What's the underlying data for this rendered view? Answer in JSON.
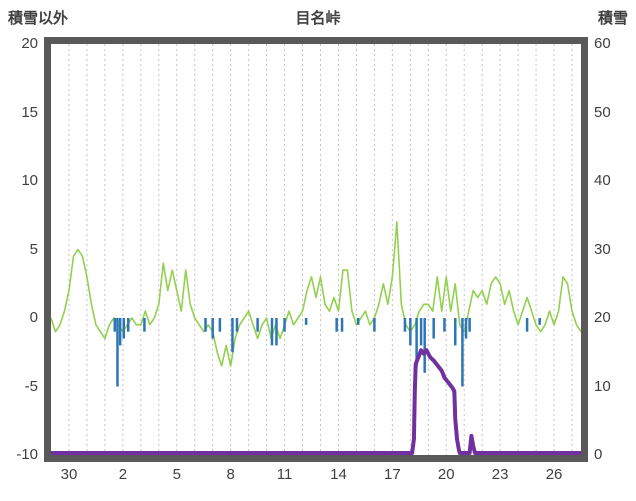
{
  "chart_data": {
    "type": "line",
    "title": "目名峠",
    "left_axis": {
      "label": "積雪以外",
      "min": -10,
      "max": 20,
      "ticks": [
        20,
        15,
        10,
        5,
        0,
        -5,
        -10
      ]
    },
    "right_axis": {
      "label": "積雪",
      "min": 0,
      "max": 60,
      "ticks": [
        60,
        50,
        40,
        30,
        20,
        10,
        0
      ]
    },
    "x_axis": {
      "range": [
        0,
        29.5
      ],
      "tick_labels": [
        "30",
        "2",
        "5",
        "8",
        "11",
        "14",
        "17",
        "20",
        "23",
        "26"
      ],
      "tick_positions": [
        1,
        4,
        7,
        10,
        13,
        16,
        19,
        22,
        25,
        28
      ],
      "day_gridlines": true
    },
    "style": {
      "frame_color": "#595959",
      "grid_color": "#c3c3c3",
      "text_color": "#404040",
      "background": "#ffffff"
    },
    "series": [
      {
        "name": "green_line",
        "type": "line",
        "axis": "left",
        "color": "#92d050",
        "width": 1.6,
        "x_start": 0,
        "x_step": 0.25,
        "values": [
          0,
          -1,
          -0.5,
          0.5,
          2,
          4.5,
          5,
          4.5,
          3,
          1,
          -0.5,
          -1,
          -1.5,
          -0.5,
          0,
          -0.5,
          -1,
          -0.5,
          0,
          -0.5,
          -0.5,
          0.5,
          -0.5,
          0,
          1,
          4,
          2,
          3.5,
          2,
          0.5,
          3.5,
          1,
          0,
          -0.5,
          -1,
          -0.5,
          -1,
          -2.5,
          -3.5,
          -2,
          -3.5,
          -1.5,
          -0.5,
          0,
          0.5,
          -0.5,
          -1.5,
          -0.5,
          0,
          -1.5,
          -0.5,
          -1.5,
          -0.5,
          0.5,
          -0.5,
          0,
          0.5,
          2,
          3,
          1.5,
          3,
          1,
          0.5,
          1.5,
          0.5,
          3.5,
          3.5,
          0.5,
          -0.5,
          0,
          0.5,
          -0.5,
          0,
          1,
          2.5,
          1,
          3,
          7,
          1,
          -0.5,
          -1,
          -0.5,
          0.5,
          1,
          1,
          0.5,
          3,
          0.5,
          3,
          0.5,
          2.5,
          -0.5,
          -1,
          0.5,
          2,
          1.5,
          2,
          1,
          2.5,
          3,
          2.5,
          1,
          2,
          0.5,
          -0.5,
          0.5,
          1.5,
          0.5,
          -0.5,
          -1,
          -0.5,
          0.5,
          -0.5,
          0.5,
          3,
          2.5,
          0.5,
          -0.5,
          -1
        ]
      },
      {
        "name": "blue_bars",
        "type": "bar",
        "axis": "left",
        "color": "#2e75b6",
        "width": 2.5,
        "points": [
          [
            3.55,
            -1
          ],
          [
            3.7,
            -5
          ],
          [
            3.85,
            -2
          ],
          [
            4.05,
            -1.5
          ],
          [
            4.3,
            -1
          ],
          [
            5.2,
            -1
          ],
          [
            8.6,
            -1
          ],
          [
            9.0,
            -1.5
          ],
          [
            9.4,
            -1
          ],
          [
            10.1,
            -2.5
          ],
          [
            10.35,
            -1
          ],
          [
            11.5,
            -1
          ],
          [
            12.3,
            -2
          ],
          [
            12.55,
            -2
          ],
          [
            13.0,
            -1
          ],
          [
            14.2,
            -0.5
          ],
          [
            15.9,
            -1
          ],
          [
            16.2,
            -1
          ],
          [
            17.1,
            -0.5
          ],
          [
            18.0,
            -1
          ],
          [
            19.7,
            -1
          ],
          [
            20.0,
            -2
          ],
          [
            20.35,
            -3.5
          ],
          [
            20.6,
            -2
          ],
          [
            20.8,
            -4
          ],
          [
            21.3,
            -1.5
          ],
          [
            21.9,
            -1
          ],
          [
            22.5,
            -2
          ],
          [
            22.9,
            -5
          ],
          [
            23.1,
            -1.5
          ],
          [
            23.3,
            -1
          ],
          [
            26.5,
            -1
          ],
          [
            27.2,
            -0.5
          ]
        ]
      },
      {
        "name": "purple_snow_depth_line",
        "type": "line",
        "axis": "right",
        "color": "#7030a0",
        "width": 4,
        "points": [
          [
            0,
            0
          ],
          [
            20.1,
            0
          ],
          [
            20.2,
            2
          ],
          [
            20.25,
            9
          ],
          [
            20.3,
            13
          ],
          [
            20.45,
            14
          ],
          [
            20.6,
            15
          ],
          [
            20.75,
            14.5
          ],
          [
            20.9,
            15
          ],
          [
            21.1,
            14
          ],
          [
            21.3,
            13.5
          ],
          [
            21.45,
            13
          ],
          [
            21.6,
            12.5
          ],
          [
            21.75,
            12
          ],
          [
            21.9,
            11
          ],
          [
            22.05,
            10.5
          ],
          [
            22.2,
            10
          ],
          [
            22.35,
            9.5
          ],
          [
            22.45,
            9
          ],
          [
            22.5,
            5
          ],
          [
            22.6,
            2
          ],
          [
            22.7,
            0.5
          ],
          [
            22.75,
            0
          ],
          [
            23.3,
            0
          ],
          [
            23.4,
            2.5
          ],
          [
            23.5,
            1
          ],
          [
            23.6,
            0
          ],
          [
            29.5,
            0
          ]
        ]
      }
    ]
  }
}
